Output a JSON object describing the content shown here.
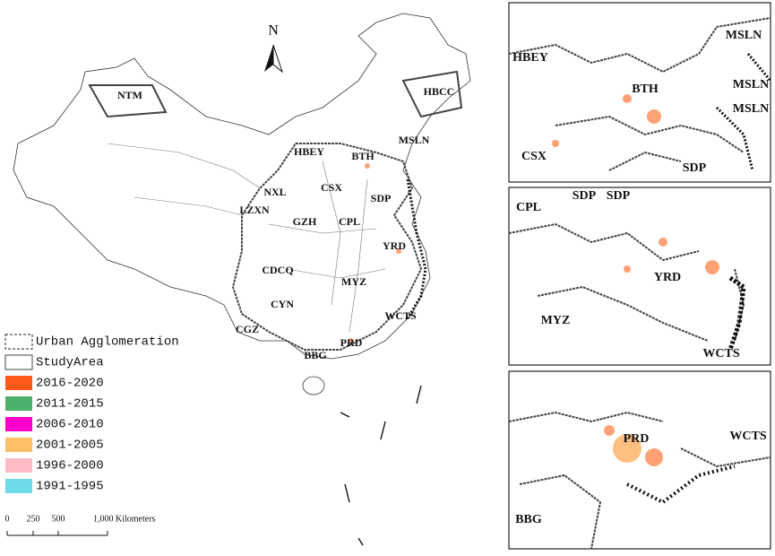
{
  "north_arrow": "N",
  "map_labels": [
    "NTM",
    "HBCC",
    "HBEY",
    "BTH",
    "MSLN",
    "NXL",
    "CSX",
    "SDP",
    "LZXN",
    "GZH",
    "CPL",
    "YRD",
    "CDCQ",
    "MYZ",
    "CYN",
    "WCTS",
    "CGZ",
    "PRD",
    "BBG"
  ],
  "insets": [
    {
      "labels": [
        "HBEY",
        "MSLN",
        "BTH",
        "MSLN",
        "MSLN",
        "CSX",
        "SDP"
      ]
    },
    {
      "labels": [
        "SDP",
        "SDP",
        "CPL",
        "YRD",
        "MYZ",
        "WCTS"
      ]
    },
    {
      "labels": [
        "PRD",
        "WCTS",
        "BBG"
      ]
    }
  ],
  "legend": [
    {
      "label": "Urban Agglomeration",
      "style": "dashed"
    },
    {
      "label": "StudyArea",
      "style": "outline"
    },
    {
      "label": "2016-2020",
      "color": "#ff5a1a"
    },
    {
      "label": "2011-2015",
      "color": "#4caf6c"
    },
    {
      "label": "2006-2010",
      "color": "#ff00cc"
    },
    {
      "label": "2001-2005",
      "color": "#ffbf66"
    },
    {
      "label": "1996-2000",
      "color": "#ffbcc6"
    },
    {
      "label": "1991-1995",
      "color": "#6ddce8"
    }
  ],
  "scale_bar": [
    "0",
    "250",
    "500",
    "1,000 Kilometers"
  ]
}
